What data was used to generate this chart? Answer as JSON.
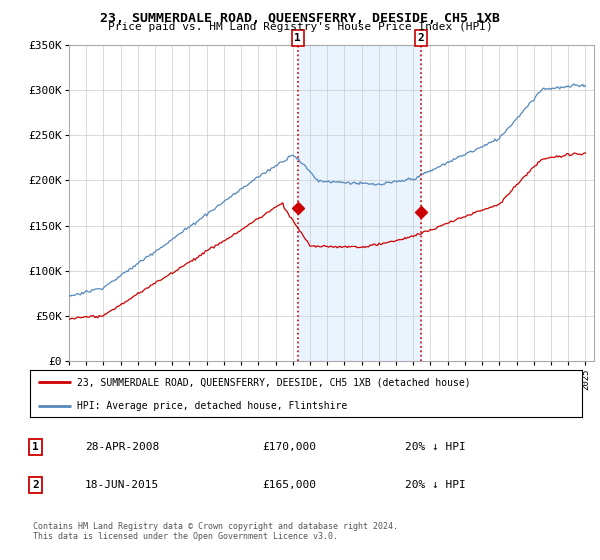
{
  "title": "23, SUMMERDALE ROAD, QUEENSFERRY, DEESIDE, CH5 1XB",
  "subtitle": "Price paid vs. HM Land Registry's House Price Index (HPI)",
  "legend_line1": "23, SUMMERDALE ROAD, QUEENSFERRY, DEESIDE, CH5 1XB (detached house)",
  "legend_line2": "HPI: Average price, detached house, Flintshire",
  "sale1_date": "28-APR-2008",
  "sale1_price": "£170,000",
  "sale1_hpi": "20% ↓ HPI",
  "sale2_date": "18-JUN-2015",
  "sale2_price": "£165,000",
  "sale2_hpi": "20% ↓ HPI",
  "footnote1": "Contains HM Land Registry data © Crown copyright and database right 2024.",
  "footnote2": "This data is licensed under the Open Government Licence v3.0.",
  "red_color": "#cc0000",
  "blue_color": "#5588bb",
  "shade_color": "#ddeeff",
  "ylim_min": 0,
  "ylim_max": 350000,
  "sale1_year": 2008.29,
  "sale2_year": 2015.46,
  "sale1_price_val": 170000,
  "sale2_price_val": 165000
}
